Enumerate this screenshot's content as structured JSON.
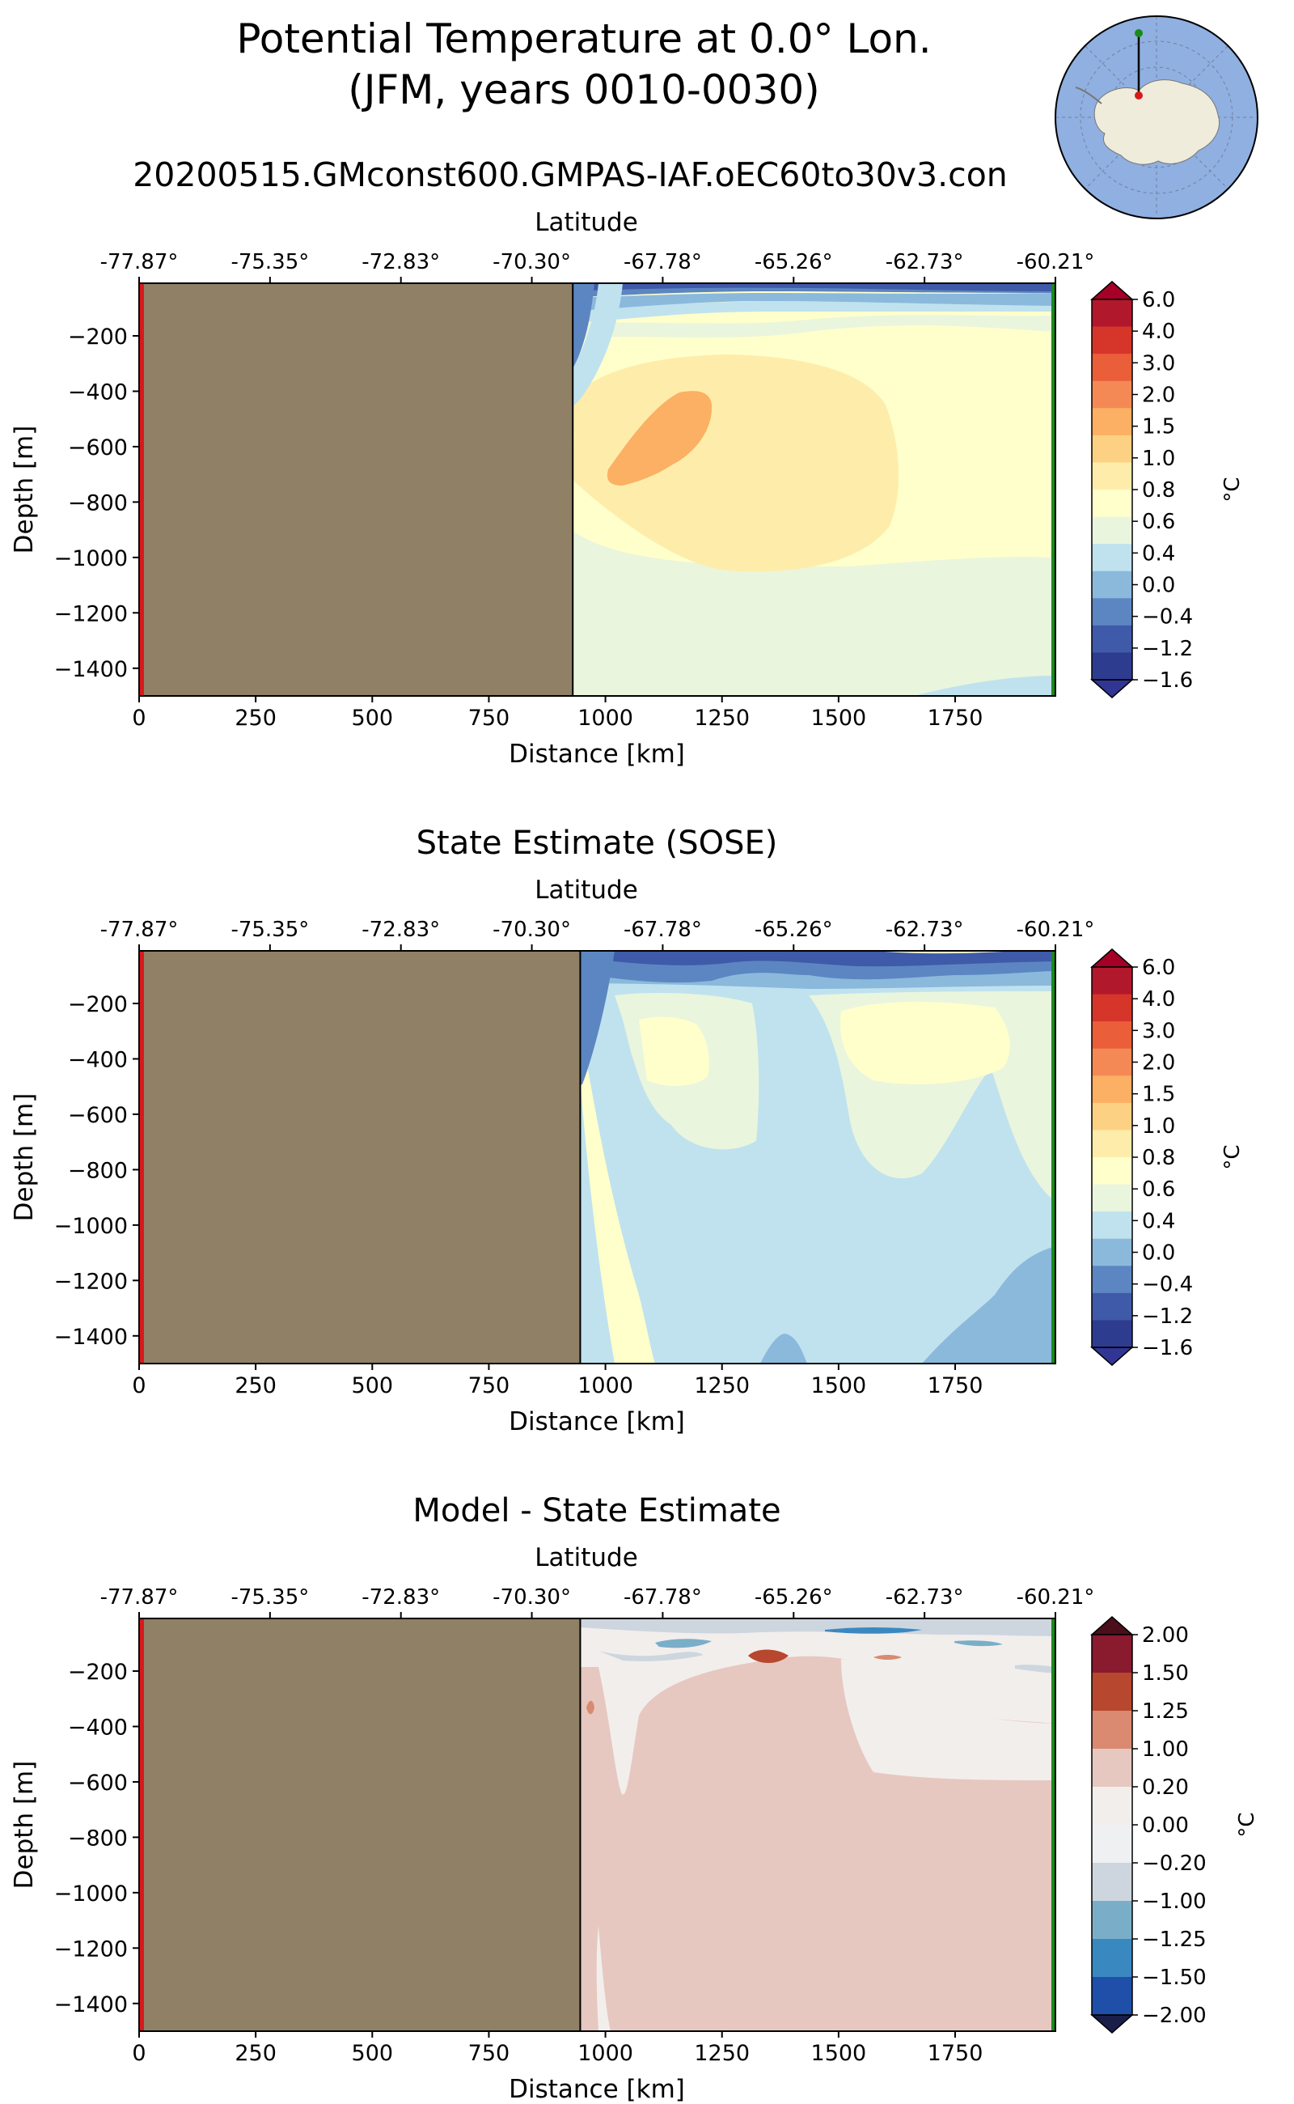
{
  "figure": {
    "title_line1": "Potential Temperature at 0.0° Lon.",
    "title_line2": "(JFM, years 0010-0030)",
    "run_name": "20200515.GMconst600.GMPAS-IAF.oEC60to30v3.con"
  },
  "colors": {
    "land": "#8f8066",
    "start_marker": "#d7191c",
    "end_marker": "#1a8a1a",
    "ocean": "#8fb0e0",
    "antarctica": "#efecdc"
  },
  "chart_data": [
    {
      "type": "contour-section",
      "title": "",
      "xlabel": "Distance [km]",
      "ylabel": "Depth [m]",
      "top_axis_label": "Latitude",
      "xlim": [
        0,
        1965
      ],
      "ylim": [
        -1500,
        -10
      ],
      "xticks": [
        "0",
        "250",
        "500",
        "750",
        "1000",
        "1250",
        "1500",
        "1750"
      ],
      "xtick_values": [
        0,
        250,
        500,
        750,
        1000,
        1250,
        1500,
        1750
      ],
      "yticks": [
        "−200",
        "−400",
        "−600",
        "−800",
        "−1000",
        "−1200",
        "−1400"
      ],
      "ytick_values": [
        -200,
        -400,
        -600,
        -800,
        -1000,
        -1200,
        -1400
      ],
      "lat_ticks": [
        "-77.87°",
        "-75.35°",
        "-72.83°",
        "-70.30°",
        "-67.78°",
        "-65.26°",
        "-62.73°",
        "-60.21°"
      ],
      "land_edge_km": 930,
      "colorbar": {
        "unit": "°C",
        "labels": [
          "6.0",
          "4.0",
          "3.0",
          "2.0",
          "1.5",
          "1.0",
          "0.8",
          "0.6",
          "0.4",
          "0.0",
          "−0.4",
          "−1.2",
          "−1.6"
        ],
        "colors": [
          "#b2182b",
          "#d6352a",
          "#ea5e39",
          "#f48956",
          "#fbb064",
          "#fdd183",
          "#feedaa",
          "#ffffcc",
          "#eaf5dd",
          "#bfe2ee",
          "#8ab9dc",
          "#5c86c2",
          "#3f5aa8",
          "#2e3c8f"
        ],
        "over": "#a50026",
        "under": "#313695"
      }
    },
    {
      "type": "contour-section",
      "title": "State Estimate (SOSE)",
      "xlabel": "Distance [km]",
      "ylabel": "Depth [m]",
      "top_axis_label": "Latitude",
      "xlim": [
        0,
        1965
      ],
      "ylim": [
        -1500,
        -10
      ],
      "xticks": [
        "0",
        "250",
        "500",
        "750",
        "1000",
        "1250",
        "1500",
        "1750"
      ],
      "xtick_values": [
        0,
        250,
        500,
        750,
        1000,
        1250,
        1500,
        1750
      ],
      "yticks": [
        "−200",
        "−400",
        "−600",
        "−800",
        "−1000",
        "−1200",
        "−1400"
      ],
      "ytick_values": [
        -200,
        -400,
        -600,
        -800,
        -1000,
        -1200,
        -1400
      ],
      "lat_ticks": [
        "-77.87°",
        "-75.35°",
        "-72.83°",
        "-70.30°",
        "-67.78°",
        "-65.26°",
        "-62.73°",
        "-60.21°"
      ],
      "land_edge_km": 946,
      "colorbar": {
        "unit": "°C",
        "labels": [
          "6.0",
          "4.0",
          "3.0",
          "2.0",
          "1.5",
          "1.0",
          "0.8",
          "0.6",
          "0.4",
          "0.0",
          "−0.4",
          "−1.2",
          "−1.6"
        ],
        "colors": [
          "#b2182b",
          "#d6352a",
          "#ea5e39",
          "#f48956",
          "#fbb064",
          "#fdd183",
          "#feedaa",
          "#ffffcc",
          "#eaf5dd",
          "#bfe2ee",
          "#8ab9dc",
          "#5c86c2",
          "#3f5aa8",
          "#2e3c8f"
        ],
        "over": "#a50026",
        "under": "#313695"
      }
    },
    {
      "type": "contour-section",
      "title": "Model - State Estimate",
      "xlabel": "Distance [km]",
      "ylabel": "Depth [m]",
      "top_axis_label": "Latitude",
      "xlim": [
        0,
        1965
      ],
      "ylim": [
        -1500,
        -10
      ],
      "xticks": [
        "0",
        "250",
        "500",
        "750",
        "1000",
        "1250",
        "1500",
        "1750"
      ],
      "xtick_values": [
        0,
        250,
        500,
        750,
        1000,
        1250,
        1500,
        1750
      ],
      "yticks": [
        "−200",
        "−400",
        "−600",
        "−800",
        "−1000",
        "−1200",
        "−1400"
      ],
      "ytick_values": [
        -200,
        -400,
        -600,
        -800,
        -1000,
        -1200,
        -1400
      ],
      "lat_ticks": [
        "-77.87°",
        "-75.35°",
        "-72.83°",
        "-70.30°",
        "-67.78°",
        "-65.26°",
        "-62.73°",
        "-60.21°"
      ],
      "land_edge_km": 946,
      "colorbar": {
        "unit": "°C",
        "labels": [
          "2.00",
          "1.50",
          "1.25",
          "1.00",
          "0.20",
          "0.00",
          "−0.20",
          "−1.00",
          "−1.25",
          "−1.50",
          "−2.00"
        ],
        "colors": [
          "#8a1a2e",
          "#b7472e",
          "#d98a70",
          "#e6c8c0",
          "#f2eeec",
          "#eef0f2",
          "#cdd6df",
          "#7aaec8",
          "#3a88c0",
          "#1f4fa8"
        ],
        "over": "#4b0f1c",
        "under": "#1a1f4a"
      }
    }
  ]
}
